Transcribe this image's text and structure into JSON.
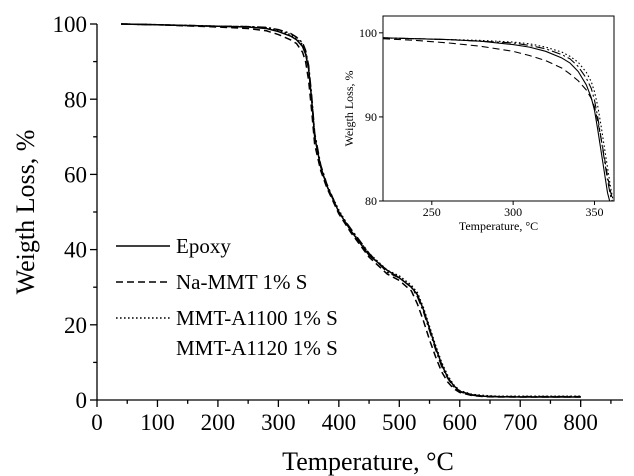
{
  "chart_data": [
    {
      "type": "line",
      "title": "",
      "xlabel": "Temperature, °C",
      "ylabel": "Weigth Loss, %",
      "xlim": [
        0,
        870
      ],
      "ylim": [
        0,
        100
      ],
      "xticks": [
        "0",
        "100",
        "200",
        "300",
        "400",
        "500",
        "600",
        "700",
        "800"
      ],
      "yticks": [
        "0",
        "20",
        "40",
        "60",
        "80",
        "100"
      ],
      "grid": false,
      "legend_position": "lower-left",
      "series": [
        {
          "name": "Epoxy",
          "style": "solid",
          "x": [
            40,
            100,
            150,
            200,
            250,
            280,
            300,
            320,
            330,
            340,
            345,
            350,
            355,
            360,
            370,
            380,
            400,
            420,
            450,
            480,
            500,
            520,
            530,
            540,
            550,
            560,
            570,
            580,
            590,
            600,
            620,
            640,
            660,
            700,
            750,
            800
          ],
          "y": [
            100,
            99.8,
            99.6,
            99.4,
            99.2,
            98.8,
            98.0,
            96.8,
            95.8,
            94.0,
            92.0,
            88.0,
            80.0,
            70.0,
            62.0,
            57.0,
            50.0,
            45.0,
            38.5,
            34.5,
            32.5,
            30.0,
            28.0,
            24.0,
            19.0,
            14.0,
            9.5,
            6.0,
            3.8,
            2.3,
            1.4,
            1.0,
            0.9,
            0.8,
            0.8,
            0.8
          ]
        },
        {
          "name": "Na-MMT 1% S",
          "style": "dashed",
          "x": [
            40,
            100,
            150,
            200,
            250,
            280,
            300,
            320,
            330,
            340,
            345,
            350,
            355,
            360,
            370,
            380,
            400,
            420,
            450,
            480,
            500,
            520,
            530,
            540,
            550,
            560,
            570,
            580,
            590,
            600,
            620,
            640,
            660,
            700,
            750,
            800
          ],
          "y": [
            100,
            99.8,
            99.5,
            99.2,
            98.8,
            98.2,
            97.2,
            95.8,
            94.8,
            92.5,
            90.0,
            85.0,
            77.0,
            68.0,
            61.0,
            56.5,
            49.5,
            44.5,
            38.0,
            33.5,
            31.8,
            29.0,
            25.5,
            21.0,
            16.0,
            11.5,
            7.5,
            4.8,
            3.0,
            2.0,
            1.2,
            0.9,
            0.8,
            0.8,
            0.8,
            0.8
          ]
        },
        {
          "name": "MMT-A1100 1% S",
          "style": "dotted",
          "x": [
            40,
            100,
            150,
            200,
            250,
            280,
            300,
            320,
            330,
            340,
            345,
            350,
            355,
            360,
            370,
            380,
            400,
            420,
            450,
            480,
            500,
            520,
            530,
            540,
            550,
            560,
            570,
            580,
            590,
            600,
            620,
            640,
            660,
            700,
            750,
            800
          ],
          "y": [
            100,
            99.8,
            99.6,
            99.4,
            99.3,
            99.0,
            98.3,
            97.2,
            96.2,
            94.5,
            92.5,
            88.5,
            80.5,
            70.5,
            62.0,
            57.0,
            50.5,
            45.0,
            39.0,
            34.5,
            33.0,
            30.5,
            28.5,
            24.5,
            19.5,
            14.5,
            10.0,
            6.5,
            4.0,
            2.5,
            1.5,
            1.2,
            1.0,
            1.0,
            1.0,
            1.0
          ]
        },
        {
          "name": "MMT-A1120 1% S",
          "style": "dash-dot",
          "x": [
            40,
            100,
            150,
            200,
            250,
            280,
            300,
            320,
            330,
            340,
            345,
            350,
            355,
            360,
            370,
            380,
            400,
            420,
            450,
            480,
            500,
            520,
            530,
            540,
            550,
            560,
            570,
            580,
            590,
            600,
            620,
            640,
            660,
            700,
            750,
            800
          ],
          "y": [
            100,
            99.8,
            99.6,
            99.4,
            99.3,
            99.1,
            98.5,
            97.5,
            96.5,
            95.0,
            93.0,
            89.0,
            81.0,
            71.0,
            62.5,
            57.5,
            50.0,
            45.5,
            39.0,
            34.0,
            32.5,
            30.0,
            27.5,
            23.5,
            18.5,
            13.5,
            9.0,
            5.8,
            3.5,
            2.2,
            1.3,
            1.0,
            0.9,
            0.9,
            0.9,
            0.9
          ]
        }
      ]
    },
    {
      "type": "line",
      "title": "",
      "xlabel": "Temperature, °C",
      "ylabel": "Weigth Loss, %",
      "xlim": [
        220,
        362
      ],
      "ylim": [
        80,
        102
      ],
      "xticks": [
        "250",
        "300",
        "350"
      ],
      "yticks": [
        "80",
        "90",
        "100"
      ],
      "grid": false,
      "series": [
        {
          "name": "Epoxy",
          "style": "solid",
          "x": [
            220,
            240,
            260,
            280,
            300,
            310,
            320,
            330,
            335,
            340,
            345,
            348,
            350,
            352,
            354,
            356,
            358,
            360
          ],
          "y": [
            99.4,
            99.3,
            99.2,
            99.0,
            98.6,
            98.3,
            97.8,
            97.0,
            96.4,
            95.4,
            93.8,
            92.3,
            90.8,
            88.5,
            86.0,
            83.5,
            81.0,
            79.5
          ]
        },
        {
          "name": "Na-MMT 1% S",
          "style": "dashed",
          "x": [
            220,
            240,
            260,
            280,
            300,
            310,
            320,
            330,
            335,
            340,
            345,
            348,
            350,
            352,
            354,
            356,
            358,
            360,
            362
          ],
          "y": [
            99.3,
            99.1,
            98.8,
            98.4,
            97.8,
            97.3,
            96.7,
            95.8,
            95.1,
            94.3,
            93.2,
            92.2,
            91.2,
            89.5,
            87.5,
            85.3,
            83.0,
            81.0,
            79.5
          ]
        },
        {
          "name": "MMT-A1100 1% S",
          "style": "dotted",
          "x": [
            220,
            240,
            260,
            280,
            300,
            310,
            320,
            330,
            335,
            340,
            345,
            348,
            350,
            352,
            354,
            356,
            358,
            360,
            362
          ],
          "y": [
            99.4,
            99.3,
            99.2,
            99.1,
            98.9,
            98.7,
            98.3,
            97.7,
            97.2,
            96.5,
            95.3,
            94.2,
            93.0,
            91.3,
            89.0,
            86.5,
            84.0,
            81.5,
            79.5
          ]
        },
        {
          "name": "MMT-A1120 1% S",
          "style": "dash-dot",
          "x": [
            220,
            240,
            260,
            280,
            300,
            310,
            320,
            330,
            335,
            340,
            345,
            348,
            350,
            352,
            354,
            356,
            358,
            360,
            362
          ],
          "y": [
            99.4,
            99.3,
            99.2,
            99.0,
            98.8,
            98.5,
            98.1,
            97.4,
            96.9,
            96.0,
            94.6,
            93.4,
            92.0,
            90.0,
            87.5,
            85.0,
            82.5,
            80.5,
            79.5
          ]
        }
      ]
    }
  ]
}
